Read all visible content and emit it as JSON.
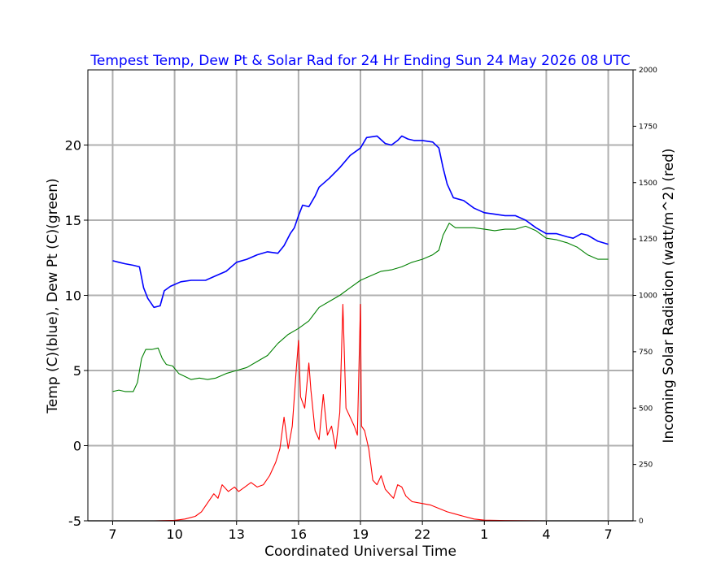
{
  "chart_data": {
    "type": "line",
    "title": "Tempest Temp, Dew Pt & Solar Rad for 24 Hr Ending Sun 24 May  2026 08 UTC",
    "xlabel": "Coordinated Universal Time",
    "ylabel_left": "Temp (C)(blue), Dew Pt (C)(green)",
    "ylabel_right": "Incoming Solar Radiation (watt/m^2) (red)",
    "x_ticks": [
      "7",
      "10",
      "13",
      "16",
      "19",
      "22",
      "1",
      "4",
      "7"
    ],
    "y_ticks_left": [
      "-5",
      "0",
      "5",
      "10",
      "15",
      "20"
    ],
    "y_ticks_right": [
      "0",
      "250",
      "500",
      "750",
      "1000",
      "1250",
      "1500",
      "1750",
      "2000"
    ],
    "xlim": [
      5.8,
      32.2
    ],
    "ylim_left": [
      -5,
      25
    ],
    "ylim_right": [
      0,
      2000
    ],
    "grid": true,
    "colors": {
      "temp": "#0000ff",
      "dewpoint": "#008000",
      "solar": "#ff0000",
      "title": "#0000ff"
    },
    "series": [
      {
        "key": "temp",
        "axis": "left",
        "x": [
          7.0,
          7.3,
          7.6,
          8.0,
          8.3,
          8.5,
          8.7,
          9.0,
          9.3,
          9.5,
          9.8,
          10.3,
          10.8,
          11.5,
          12.0,
          12.5,
          13.0,
          13.5,
          14.0,
          14.5,
          15.0,
          15.3,
          15.6,
          15.8,
          16.0,
          16.2,
          16.5,
          16.8,
          17.0,
          17.5,
          18.0,
          18.5,
          19.0,
          19.3,
          19.8,
          20.2,
          20.5,
          20.8,
          21.0,
          21.3,
          21.6,
          22.0,
          22.5,
          22.8,
          23.0,
          23.2,
          23.5,
          24.0,
          24.5,
          25.0,
          25.5,
          26.0,
          26.5,
          27.0,
          27.5,
          28.0,
          28.5,
          29.0,
          29.3,
          29.7,
          30.0,
          30.5,
          31.0
        ],
        "y": [
          12.3,
          12.2,
          12.1,
          12.0,
          11.9,
          10.5,
          9.8,
          9.2,
          9.3,
          10.3,
          10.6,
          10.9,
          11.0,
          11.0,
          11.3,
          11.6,
          12.2,
          12.4,
          12.7,
          12.9,
          12.8,
          13.3,
          14.1,
          14.5,
          15.3,
          16.0,
          15.9,
          16.6,
          17.2,
          17.8,
          18.5,
          19.3,
          19.8,
          20.5,
          20.6,
          20.1,
          20.0,
          20.3,
          20.6,
          20.4,
          20.3,
          20.3,
          20.2,
          19.8,
          18.5,
          17.4,
          16.5,
          16.3,
          15.8,
          15.5,
          15.4,
          15.3,
          15.3,
          15.0,
          14.5,
          14.1,
          14.1,
          13.9,
          13.8,
          14.1,
          14.0,
          13.6,
          13.4
        ]
      },
      {
        "key": "dewpoint",
        "axis": "left",
        "x": [
          7.0,
          7.3,
          7.6,
          8.0,
          8.2,
          8.4,
          8.6,
          8.9,
          9.2,
          9.4,
          9.6,
          9.9,
          10.2,
          10.5,
          10.8,
          11.2,
          11.6,
          12.0,
          12.5,
          13.0,
          13.5,
          14.0,
          14.5,
          15.0,
          15.5,
          16.0,
          16.5,
          17.0,
          17.5,
          18.0,
          18.5,
          19.0,
          19.5,
          20.0,
          20.5,
          21.0,
          21.5,
          22.0,
          22.5,
          22.8,
          23.0,
          23.3,
          23.6,
          24.0,
          24.5,
          25.0,
          25.5,
          26.0,
          26.5,
          27.0,
          27.5,
          28.0,
          28.5,
          29.0,
          29.5,
          30.0,
          30.5,
          31.0
        ],
        "y": [
          3.6,
          3.7,
          3.6,
          3.6,
          4.2,
          5.8,
          6.4,
          6.4,
          6.5,
          5.8,
          5.4,
          5.3,
          4.8,
          4.6,
          4.4,
          4.5,
          4.4,
          4.5,
          4.8,
          5.0,
          5.2,
          5.6,
          6.0,
          6.8,
          7.4,
          7.8,
          8.3,
          9.2,
          9.6,
          10.0,
          10.5,
          11.0,
          11.3,
          11.6,
          11.7,
          11.9,
          12.2,
          12.4,
          12.7,
          13.0,
          14.0,
          14.8,
          14.5,
          14.5,
          14.5,
          14.4,
          14.3,
          14.4,
          14.4,
          14.6,
          14.3,
          13.8,
          13.7,
          13.5,
          13.2,
          12.7,
          12.4,
          12.4
        ]
      },
      {
        "key": "solar",
        "axis": "right",
        "x": [
          7.0,
          9.0,
          10.0,
          10.5,
          11.0,
          11.3,
          11.6,
          11.9,
          12.1,
          12.3,
          12.6,
          12.9,
          13.1,
          13.4,
          13.7,
          14.0,
          14.3,
          14.6,
          14.9,
          15.1,
          15.3,
          15.5,
          15.7,
          15.9,
          16.0,
          16.1,
          16.3,
          16.5,
          16.6,
          16.8,
          17.0,
          17.2,
          17.4,
          17.6,
          17.8,
          18.0,
          18.15,
          18.3,
          18.5,
          18.7,
          18.85,
          19.0,
          19.05,
          19.2,
          19.4,
          19.6,
          19.8,
          20.0,
          20.2,
          20.4,
          20.6,
          20.8,
          21.0,
          21.2,
          21.5,
          21.8,
          22.1,
          22.4,
          22.8,
          23.2,
          23.6,
          24.0,
          24.5,
          25.0,
          26.0,
          28.0,
          31.0
        ],
        "y": [
          0,
          0,
          2,
          8,
          20,
          40,
          80,
          120,
          100,
          160,
          130,
          150,
          130,
          150,
          170,
          150,
          160,
          200,
          260,
          320,
          460,
          320,
          420,
          680,
          800,
          550,
          500,
          700,
          580,
          400,
          360,
          560,
          380,
          420,
          320,
          480,
          960,
          500,
          460,
          420,
          380,
          960,
          420,
          400,
          320,
          180,
          160,
          200,
          140,
          120,
          100,
          160,
          150,
          110,
          85,
          80,
          75,
          70,
          55,
          40,
          30,
          20,
          8,
          3,
          1,
          0,
          0
        ]
      }
    ]
  }
}
